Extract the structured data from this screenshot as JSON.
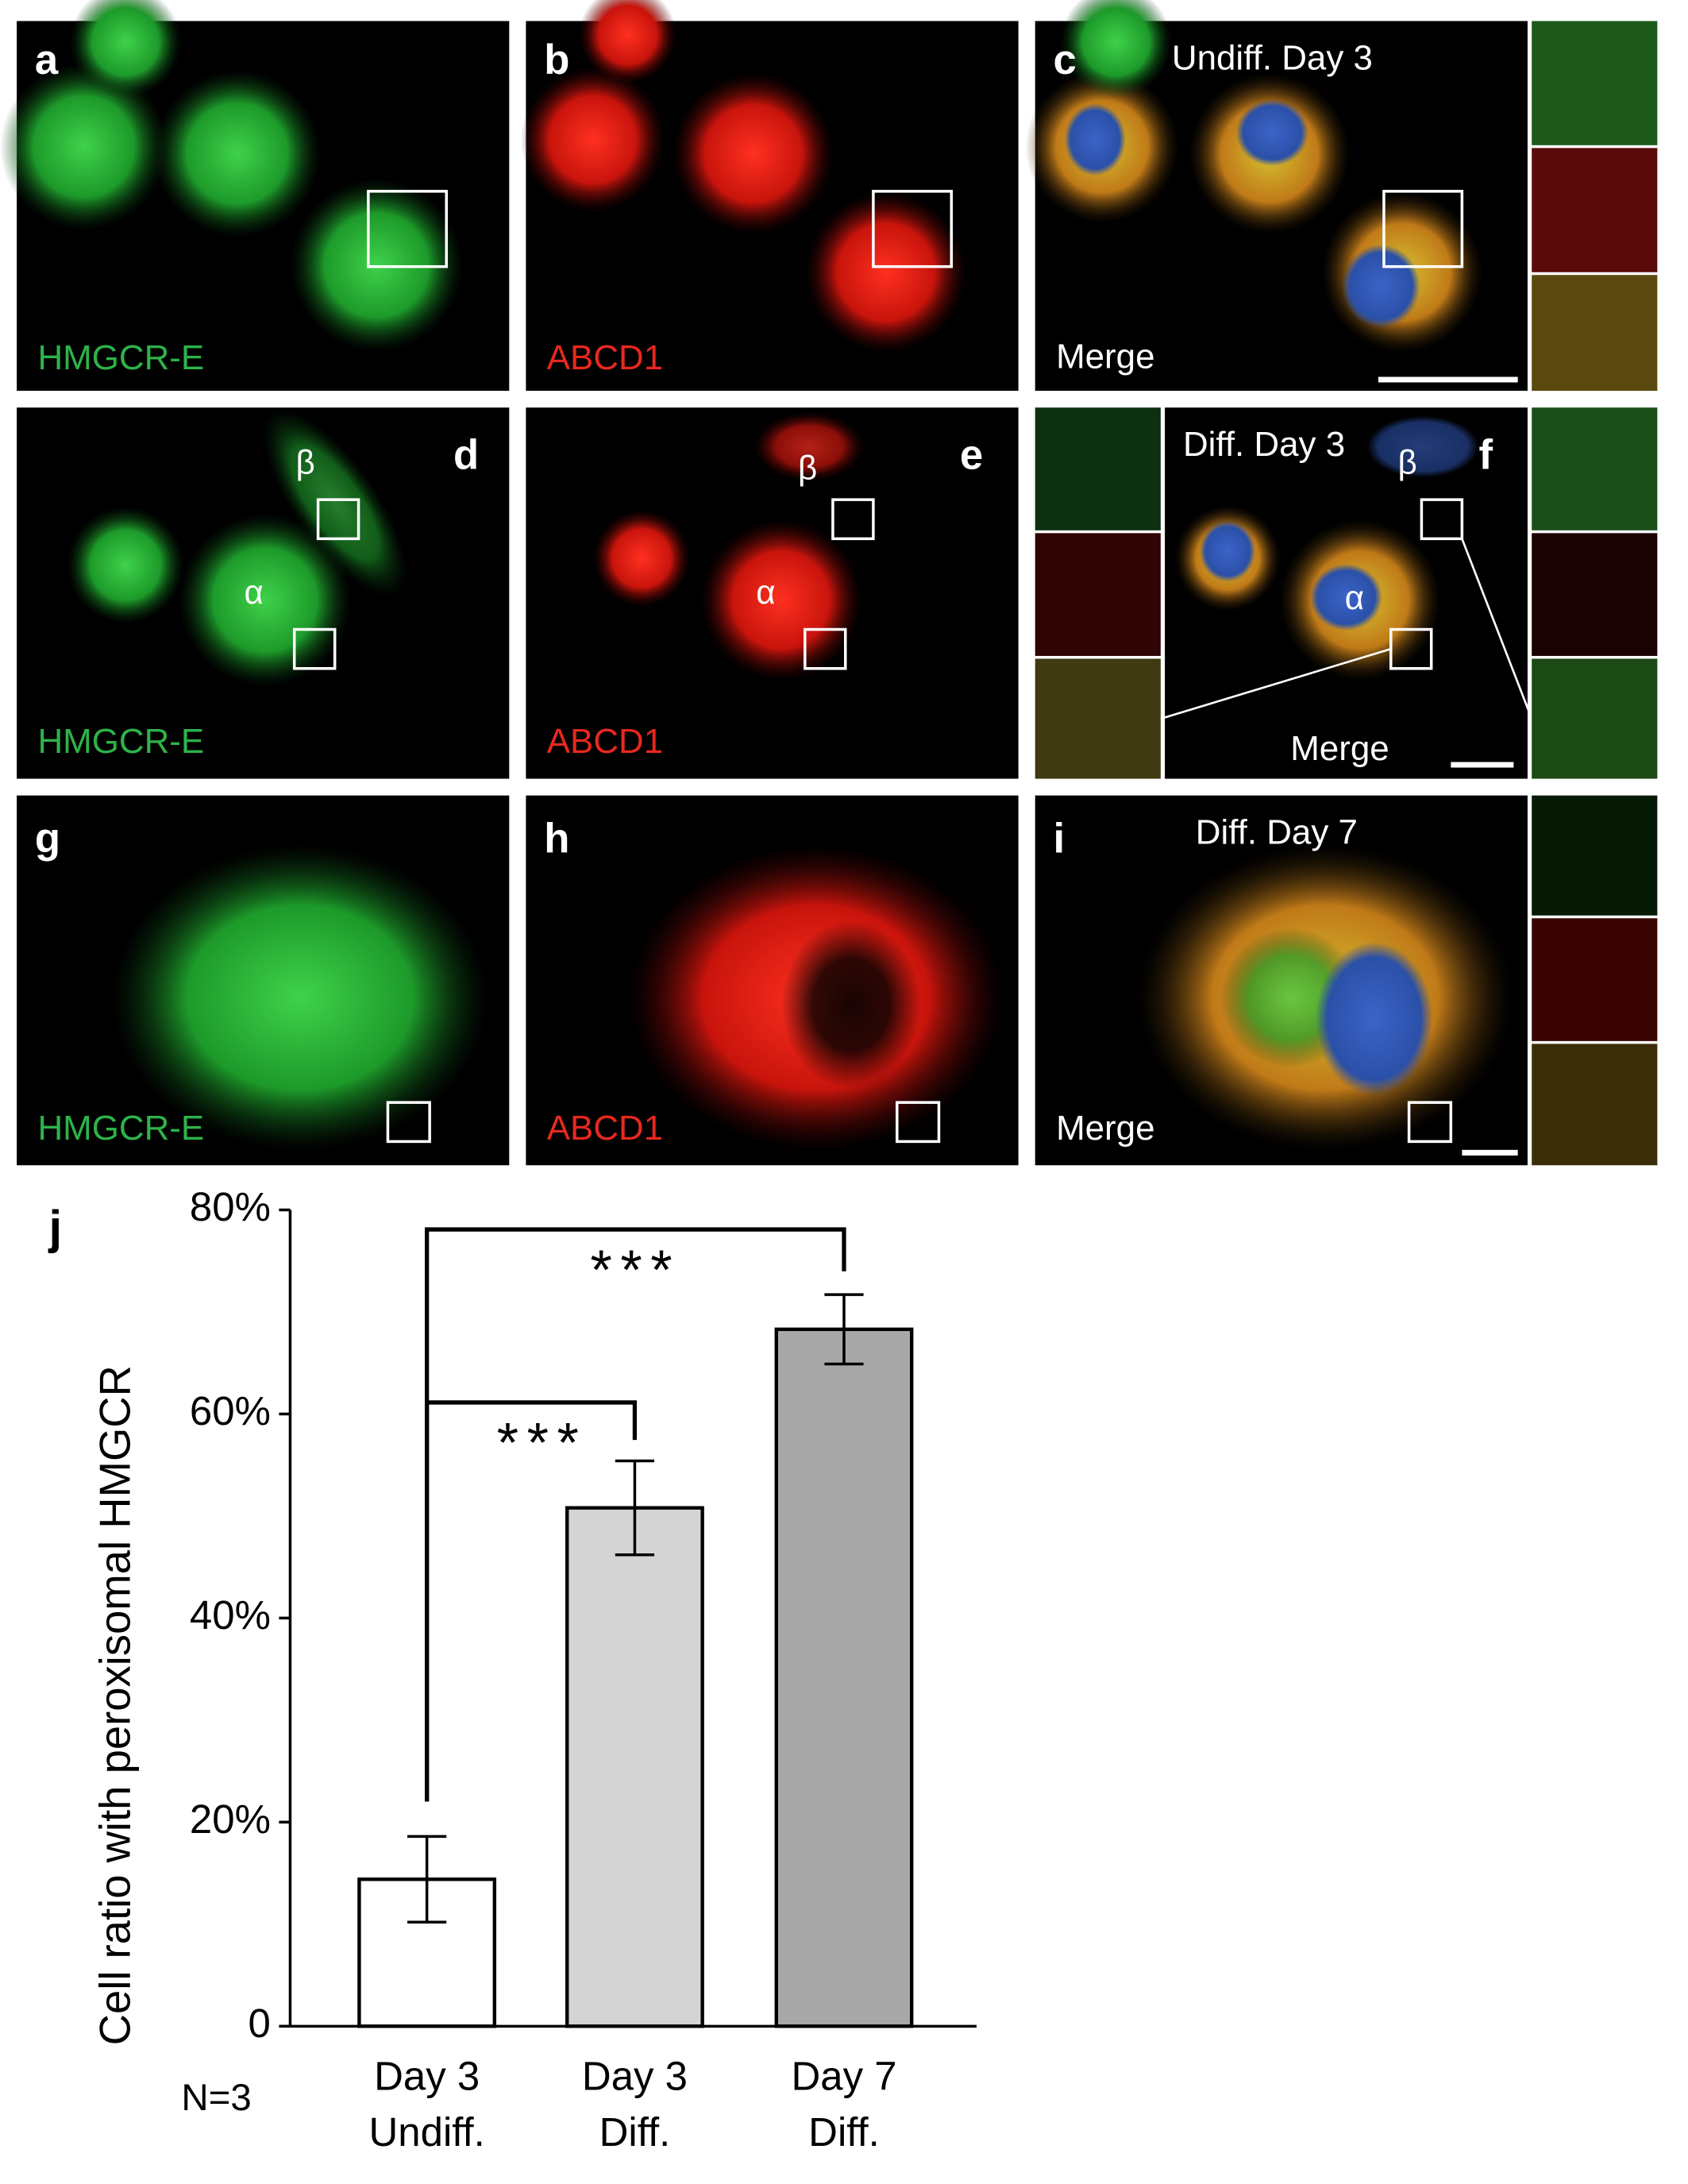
{
  "panels": [
    {
      "letter": "a",
      "label": "HMGCR-E"
    },
    {
      "letter": "b",
      "label": "ABCD1"
    },
    {
      "letter": "c",
      "title": "Undiff. Day 3",
      "label": "Merge"
    },
    {
      "letter": "d",
      "label": "HMGCR-E",
      "markers": [
        "β",
        "α"
      ]
    },
    {
      "letter": "e",
      "label": "ABCD1",
      "markers": [
        "β",
        "α"
      ]
    },
    {
      "letter": "f",
      "title": "Diff. Day 3",
      "label": "Merge",
      "markers": [
        "β",
        "α"
      ]
    },
    {
      "letter": "g",
      "label": "HMGCR-E"
    },
    {
      "letter": "h",
      "label": "ABCD1"
    },
    {
      "letter": "i",
      "title": "Diff. Day 7",
      "label": "Merge"
    }
  ],
  "chart_data": {
    "type": "bar",
    "panel_letter": "j",
    "y_label": "Cell ratio with peroxisomal HMGCR",
    "categories": [
      [
        "Day 3",
        "Undiff."
      ],
      [
        "Day 3",
        "Diff."
      ],
      [
        "Day 7",
        "Diff."
      ]
    ],
    "values": [
      14.4,
      50.8,
      68.3
    ],
    "errors": [
      4.2,
      4.6,
      3.4
    ],
    "colors": [
      "#ffffff",
      "#d4d4d4",
      "#a8a8a8"
    ],
    "ylim": [
      0,
      80
    ],
    "yticks": [
      0,
      {
        "value": 20,
        "label": "20%"
      },
      {
        "value": 40,
        "label": "40%"
      },
      {
        "value": 60,
        "label": "60%"
      },
      {
        "value": 80,
        "label": "80%"
      }
    ],
    "annotations": [
      "***",
      "***"
    ],
    "note": "N=3"
  }
}
